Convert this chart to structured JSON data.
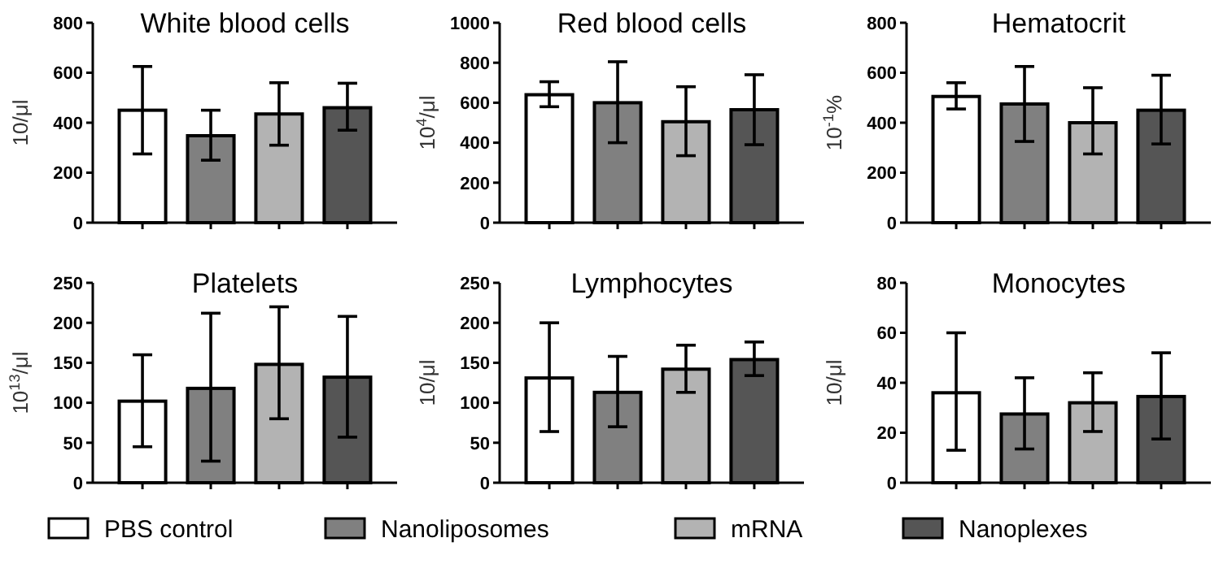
{
  "chart_data": [
    {
      "type": "bar",
      "title": "White blood cells",
      "ylabel": "10/μl",
      "categories": [
        null
      ],
      "ylim": [
        0,
        800
      ],
      "yticks": [
        0,
        200,
        400,
        600,
        800
      ],
      "legend": "bottom",
      "series": [
        {
          "name": "PBS control",
          "color": "#ffffff",
          "values": [
            450
          ],
          "errors": [
            [
              275,
              625
            ]
          ]
        },
        {
          "name": "Nanoliposomes",
          "color": "#808080",
          "values": [
            348
          ],
          "errors": [
            [
              250,
              450
            ]
          ]
        },
        {
          "name": "mRNA",
          "color": "#b3b3b3",
          "values": [
            435
          ],
          "errors": [
            [
              310,
              560
            ]
          ]
        },
        {
          "name": "Nanoplexes",
          "color": "#555555",
          "values": [
            460
          ],
          "errors": [
            [
              370,
              558
            ]
          ]
        }
      ]
    },
    {
      "type": "bar",
      "title": "Red blood cells",
      "ylabel": "10$^{4}$/μl",
      "categories": [
        null
      ],
      "ylim": [
        0,
        1000
      ],
      "yticks": [
        0,
        200,
        400,
        600,
        800,
        1000
      ],
      "series": [
        {
          "color": "#ffffff",
          "values": [
            640
          ],
          "errors": [
            [
              580,
              705
            ]
          ]
        },
        {
          "color": "#808080",
          "values": [
            600
          ],
          "errors": [
            [
              400,
              805
            ]
          ]
        },
        {
          "color": "#b3b3b3",
          "values": [
            505
          ],
          "errors": [
            [
              335,
              680
            ]
          ]
        },
        {
          "color": "#555555",
          "values": [
            565
          ],
          "errors": [
            [
              390,
              740
            ]
          ]
        }
      ]
    },
    {
      "type": "bar",
      "title": "Hematocrit",
      "ylabel": "10$^{-1}$%",
      "categories": [
        null
      ],
      "ylim": [
        0,
        800
      ],
      "yticks": [
        0,
        200,
        400,
        600,
        800
      ],
      "series": [
        {
          "color": "#ffffff",
          "values": [
            505
          ],
          "errors": [
            [
              455,
              560
            ]
          ]
        },
        {
          "color": "#808080",
          "values": [
            475
          ],
          "errors": [
            [
              325,
              625
            ]
          ]
        },
        {
          "color": "#b3b3b3",
          "values": [
            400
          ],
          "errors": [
            [
              275,
              540
            ]
          ]
        },
        {
          "color": "#555555",
          "values": [
            450
          ],
          "errors": [
            [
              315,
              590
            ]
          ]
        }
      ]
    },
    {
      "type": "bar",
      "title": "Platelets",
      "ylabel": "10$^{13}$/μl",
      "categories": [
        null
      ],
      "ylim": [
        0,
        250
      ],
      "yticks": [
        0,
        50,
        100,
        150,
        200,
        250
      ],
      "series": [
        {
          "color": "#ffffff",
          "values": [
            102
          ],
          "errors": [
            [
              45,
              160
            ]
          ]
        },
        {
          "color": "#808080",
          "values": [
            118
          ],
          "errors": [
            [
              27,
              212
            ]
          ]
        },
        {
          "color": "#b3b3b3",
          "values": [
            148
          ],
          "errors": [
            [
              80,
              220
            ]
          ]
        },
        {
          "color": "#555555",
          "values": [
            132
          ],
          "errors": [
            [
              57,
              208
            ]
          ]
        }
      ]
    },
    {
      "type": "bar",
      "title": "Lymphocytes",
      "ylabel": "10/μl",
      "categories": [
        null
      ],
      "ylim": [
        0,
        250
      ],
      "yticks": [
        0,
        50,
        100,
        150,
        200,
        250
      ],
      "series": [
        {
          "color": "#ffffff",
          "values": [
            131
          ],
          "errors": [
            [
              64,
              200
            ]
          ]
        },
        {
          "color": "#808080",
          "values": [
            113
          ],
          "errors": [
            [
              70,
              158
            ]
          ]
        },
        {
          "color": "#b3b3b3",
          "values": [
            142
          ],
          "errors": [
            [
              113,
              172
            ]
          ]
        },
        {
          "color": "#555555",
          "values": [
            154
          ],
          "errors": [
            [
              134,
              176
            ]
          ]
        }
      ]
    },
    {
      "type": "bar",
      "title": "Monocytes",
      "ylabel": "10/μl",
      "categories": [
        null
      ],
      "ylim": [
        0,
        80
      ],
      "yticks": [
        0,
        20,
        40,
        60,
        80
      ],
      "series": [
        {
          "color": "#ffffff",
          "values": [
            36
          ],
          "errors": [
            [
              13,
              60
            ]
          ]
        },
        {
          "color": "#808080",
          "values": [
            27.5
          ],
          "errors": [
            [
              13.5,
              42
            ]
          ]
        },
        {
          "color": "#b3b3b3",
          "values": [
            32
          ],
          "errors": [
            [
              20.5,
              44
            ]
          ]
        },
        {
          "color": "#555555",
          "values": [
            34.5
          ],
          "errors": [
            [
              17.5,
              52
            ]
          ]
        }
      ]
    }
  ]
}
